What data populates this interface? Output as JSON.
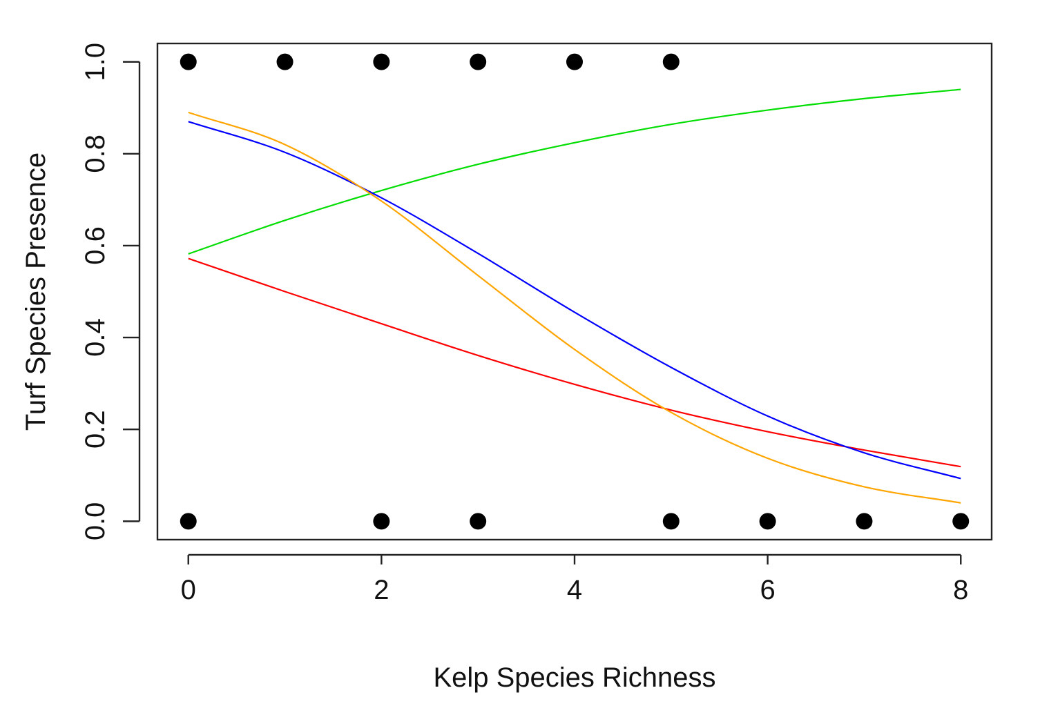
{
  "chart_data": {
    "type": "scatter",
    "title": "",
    "xlabel": "Kelp Species Richness",
    "ylabel": "Turf Species Presence",
    "xlim": [
      -0.32,
      8.32
    ],
    "ylim": [
      -0.04,
      1.04
    ],
    "x_ticks": [
      0,
      2,
      4,
      6,
      8
    ],
    "y_ticks": [
      0.0,
      0.2,
      0.4,
      0.6,
      0.8,
      1.0
    ],
    "x_tick_labels": [
      "0",
      "2",
      "4",
      "6",
      "8"
    ],
    "y_tick_labels": [
      "0.0",
      "0.2",
      "0.4",
      "0.6",
      "0.8",
      "1.0"
    ],
    "grid": false,
    "points": {
      "color": "#000000",
      "x": [
        0,
        1,
        2,
        3,
        4,
        5,
        0,
        2,
        3,
        5,
        6,
        7,
        8
      ],
      "y": [
        1,
        1,
        1,
        1,
        1,
        1,
        0,
        0,
        0,
        0,
        0,
        0,
        0
      ]
    },
    "series": [
      {
        "color": "#00dd00",
        "x": [
          0,
          1,
          2,
          3,
          4,
          5,
          6,
          7,
          8
        ],
        "values": [
          0.582,
          0.655,
          0.72,
          0.777,
          0.824,
          0.864,
          0.895,
          0.92,
          0.94
        ]
      },
      {
        "color": "#ff0000",
        "x": [
          0,
          1,
          2,
          3,
          4,
          5,
          6,
          7,
          8
        ],
        "values": [
          0.572,
          0.5,
          0.43,
          0.361,
          0.298,
          0.242,
          0.195,
          0.155,
          0.119
        ]
      },
      {
        "color": "#0000ff",
        "x": [
          0,
          1,
          2,
          3,
          4,
          5,
          6,
          7,
          8
        ],
        "values": [
          0.87,
          0.803,
          0.704,
          0.583,
          0.455,
          0.335,
          0.229,
          0.149,
          0.093
        ]
      },
      {
        "color": "#ffa500",
        "x": [
          0,
          1,
          2,
          3,
          4,
          5,
          6,
          7,
          8
        ],
        "values": [
          0.89,
          0.82,
          0.697,
          0.535,
          0.374,
          0.237,
          0.137,
          0.075,
          0.04
        ]
      }
    ]
  }
}
